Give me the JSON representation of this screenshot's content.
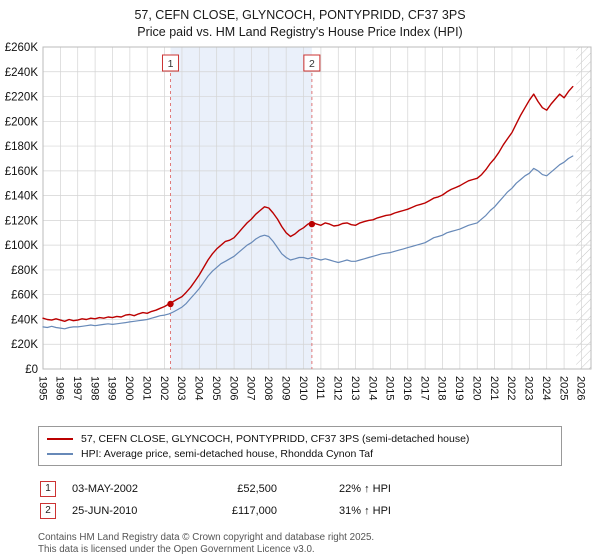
{
  "title": {
    "line1": "57, CEFN CLOSE, GLYNCOCH, PONTYPRIDD, CF37 3PS",
    "line2": "Price paid vs. HM Land Registry's House Price Index (HPI)"
  },
  "chart_data": {
    "type": "line",
    "unit": "GBP thousands",
    "x_start": 1995,
    "x_step": 0.25,
    "x_domain": [
      1995,
      2026.55
    ],
    "ylim_k": [
      0,
      260
    ],
    "y_tick_step_k": 20,
    "y_tick_labels": [
      "£0",
      "£20K",
      "£40K",
      "£60K",
      "£80K",
      "£100K",
      "£120K",
      "£140K",
      "£160K",
      "£180K",
      "£200K",
      "£220K",
      "£240K",
      "£260K"
    ],
    "x_tick_labels": [
      "1995",
      "1996",
      "1997",
      "1998",
      "1999",
      "2000",
      "2001",
      "2002",
      "2003",
      "2004",
      "2005",
      "2006",
      "2007",
      "2008",
      "2009",
      "2010",
      "2011",
      "2012",
      "2013",
      "2014",
      "2015",
      "2016",
      "2017",
      "2018",
      "2019",
      "2020",
      "2021",
      "2022",
      "2023",
      "2024",
      "2025",
      "2026"
    ],
    "series": [
      {
        "name": "57, CEFN CLOSE, GLYNCOCH, PONTYPRIDD, CF37 3PS (semi-detached house)",
        "color": "#bb0000",
        "values_k": [
          41,
          40,
          39.5,
          40.5,
          39.5,
          38.5,
          40,
          39,
          39.5,
          40.5,
          40,
          41,
          40.5,
          41.5,
          41,
          42,
          41.5,
          42.5,
          42,
          43.5,
          44,
          43,
          44.5,
          45.5,
          45,
          46.5,
          47.5,
          49,
          50.5,
          52.5,
          54.5,
          56.5,
          58.5,
          62,
          66,
          71,
          76,
          82,
          88,
          93,
          97,
          100,
          103,
          104,
          106,
          110,
          114,
          118,
          121,
          125,
          128,
          131,
          130,
          126,
          121,
          115,
          110,
          107,
          109,
          112,
          114,
          117,
          118.5,
          117,
          116,
          118,
          117,
          115.5,
          116,
          117.5,
          118,
          116.5,
          116,
          118,
          119,
          120,
          120.5,
          122,
          123,
          124,
          124.5,
          126,
          127,
          128,
          129,
          130.5,
          132,
          133,
          134,
          136,
          138,
          139,
          140.5,
          143,
          145,
          146.5,
          148,
          150,
          152,
          153,
          154,
          157,
          161,
          166,
          170,
          175,
          181,
          186,
          191,
          198,
          205,
          211,
          217,
          222,
          216,
          211,
          209,
          214,
          218,
          222,
          219,
          224,
          228
        ]
      },
      {
        "name": "HPI: Average price, semi-detached house, Rhondda Cynon Taf",
        "color": "#6789b8",
        "values_k": [
          34,
          33.5,
          34.5,
          33.5,
          33,
          32.5,
          33.5,
          34,
          34,
          34.5,
          35,
          35.5,
          35,
          35.5,
          36,
          36.5,
          36,
          36.5,
          37,
          37.5,
          38,
          38.5,
          39,
          39.5,
          40,
          41,
          42,
          43,
          43.5,
          44.5,
          46,
          48,
          50,
          53,
          57,
          61,
          65,
          70,
          75,
          79,
          82,
          85,
          87,
          89,
          91,
          94,
          97,
          100,
          102,
          105,
          107,
          108,
          107,
          103,
          98,
          93,
          90,
          88,
          89,
          90,
          90,
          89,
          90,
          89,
          88,
          89,
          88,
          87,
          86,
          87,
          88,
          87,
          87,
          88,
          89,
          90,
          91,
          92,
          93,
          93.5,
          94,
          95,
          96,
          97,
          98,
          99,
          100,
          101,
          102,
          104,
          106,
          107,
          108,
          110,
          111,
          112,
          113,
          114.5,
          116,
          117,
          118,
          121,
          124,
          128,
          131,
          135,
          139,
          143,
          146,
          150,
          153,
          156,
          158,
          162,
          160,
          157,
          156,
          159,
          162,
          165,
          167,
          170,
          172
        ]
      }
    ],
    "markers": [
      {
        "label": "1",
        "x": 2002.34,
        "value_k": 52.5
      },
      {
        "label": "2",
        "x": 2010.48,
        "value_k": 117
      }
    ],
    "shaded_region": {
      "from": 2002.34,
      "to": 2010.48
    },
    "hatch_from": 2025.7,
    "colors": {
      "red": "#bb0000",
      "blue": "#6789b8",
      "shade": "#eaf0fa",
      "dashed": "#e07a7a",
      "grid": "#d4d4d4",
      "border": "#bbbbbb"
    },
    "legend_position": "bottom",
    "grid": true
  },
  "legend": {
    "items": [
      {
        "label": "57, CEFN CLOSE, GLYNCOCH, PONTYPRIDD, CF37 3PS (semi-detached house)",
        "color": "#bb0000"
      },
      {
        "label": "HPI: Average price, semi-detached house, Rhondda Cynon Taf",
        "color": "#6789b8"
      }
    ]
  },
  "annotations": [
    {
      "num": "1",
      "date": "03-MAY-2002",
      "price": "£52,500",
      "hpi": "22% ↑ HPI"
    },
    {
      "num": "2",
      "date": "25-JUN-2010",
      "price": "£117,000",
      "hpi": "31% ↑ HPI"
    }
  ],
  "footer": {
    "line1": "Contains HM Land Registry data © Crown copyright and database right 2025.",
    "line2": "This data is licensed under the Open Government Licence v3.0."
  }
}
